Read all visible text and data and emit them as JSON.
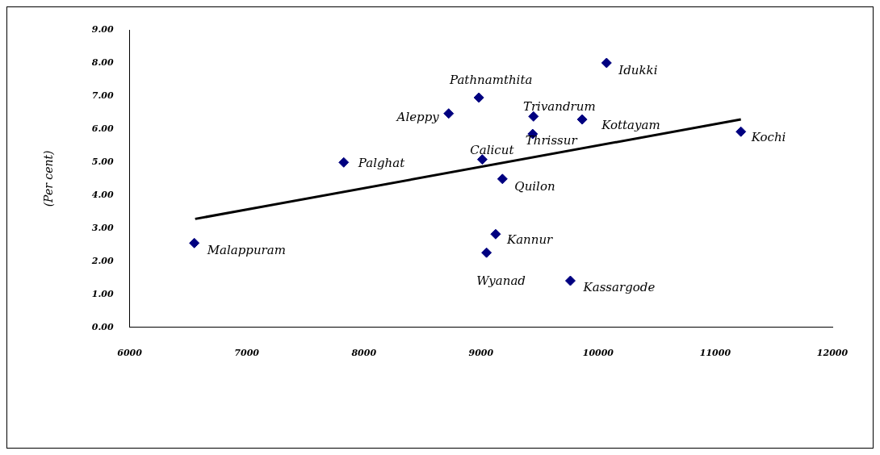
{
  "chart_data": {
    "type": "scatter",
    "ylabel": "(Per cent)",
    "xlim": [
      6000,
      12000
    ],
    "xticks": [
      6000,
      7000,
      8000,
      9000,
      10000,
      11000,
      12000
    ],
    "ylim": [
      0,
      9
    ],
    "yticks": [
      {
        "value": 0,
        "label": "0.00"
      },
      {
        "value": 1,
        "label": "1.00"
      },
      {
        "value": 2,
        "label": "2.00"
      },
      {
        "value": 3,
        "label": "3.00"
      },
      {
        "value": 4,
        "label": "4.00"
      },
      {
        "value": 5,
        "label": "5.00"
      },
      {
        "value": 6,
        "label": "6.00"
      },
      {
        "value": 7,
        "label": "7.00"
      },
      {
        "value": 8,
        "label": "8.00"
      },
      {
        "value": 9,
        "label": "9.00"
      }
    ],
    "grid": false,
    "legend": false,
    "series": [
      {
        "type": "scatter",
        "marker": "diamond",
        "color": "#000080",
        "x": [
          6552,
          7828,
          8724,
          8982,
          9011,
          9183,
          9125,
          9047,
          9763,
          9448,
          9441,
          9864,
          10072,
          11219
        ],
        "values": [
          2.55,
          4.99,
          6.47,
          6.95,
          5.08,
          4.49,
          2.82,
          2.26,
          1.41,
          6.38,
          5.85,
          6.29,
          8.0,
          5.92
        ]
      },
      {
        "type": "line",
        "color": "#000000",
        "x": [
          6559,
          11219
        ],
        "values": [
          3.28,
          6.29
        ]
      }
    ],
    "annotations": [
      {
        "text": "Malappuram",
        "x": 6552,
        "y": 2.55
      },
      {
        "text": "Palghat",
        "x": 7828,
        "y": 4.99
      },
      {
        "text": "Aleppy",
        "x": 8724,
        "y": 6.47
      },
      {
        "text": "Pathnamthita",
        "x": 8982,
        "y": 6.95
      },
      {
        "text": "Calicut",
        "x": 9011,
        "y": 5.08
      },
      {
        "text": "Quilon",
        "x": 9183,
        "y": 4.49
      },
      {
        "text": "Kannur",
        "x": 9125,
        "y": 2.82
      },
      {
        "text": "Wyanad",
        "x": 9047,
        "y": 2.26
      },
      {
        "text": "Kassargode",
        "x": 9763,
        "y": 1.41
      },
      {
        "text": "Trivandrum",
        "x": 9448,
        "y": 6.38
      },
      {
        "text": "Thrissur",
        "x": 9441,
        "y": 5.85
      },
      {
        "text": "Kottayam",
        "x": 9864,
        "y": 6.29
      },
      {
        "text": "Idukki",
        "x": 10072,
        "y": 8.0
      },
      {
        "text": "Kochi",
        "x": 11219,
        "y": 5.92
      }
    ]
  }
}
